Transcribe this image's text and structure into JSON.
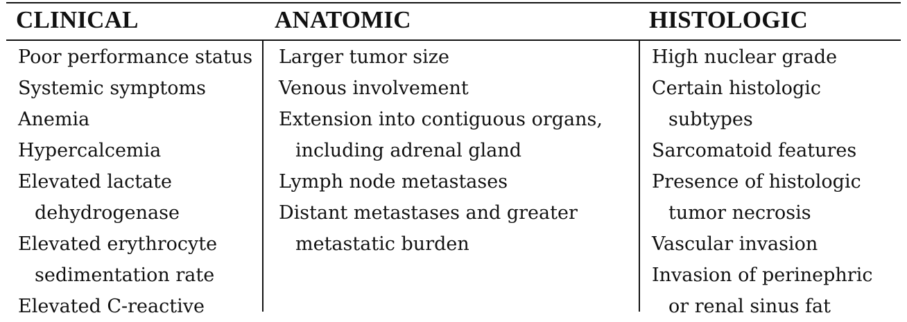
{
  "headers": {
    "clinical": "CLINICAL",
    "anatomic": "ANATOMIC",
    "histologic": "HISTOLOGIC"
  },
  "clinical": [
    {
      "text": "Poor performance status",
      "indent": false
    },
    {
      "text": "Systemic symptoms",
      "indent": false
    },
    {
      "text": "Anemia",
      "indent": false
    },
    {
      "text": "Hypercalcemia",
      "indent": false
    },
    {
      "text": "Elevated lactate",
      "indent": false
    },
    {
      "text": "dehydrogenase",
      "indent": true
    },
    {
      "text": "Elevated erythrocyte",
      "indent": false
    },
    {
      "text": "sedimentation rate",
      "indent": true
    },
    {
      "text": "Elevated C-reactive",
      "indent": false
    }
  ],
  "anatomic": [
    {
      "text": "Larger tumor size",
      "indent": false
    },
    {
      "text": "Venous involvement",
      "indent": false
    },
    {
      "text": "Extension into contiguous organs,",
      "indent": false
    },
    {
      "text": "including adrenal gland",
      "indent": true
    },
    {
      "text": "Lymph node metastases",
      "indent": false
    },
    {
      "text": "Distant metastases and greater",
      "indent": false
    },
    {
      "text": "metastatic burden",
      "indent": true
    }
  ],
  "histologic": [
    {
      "text": "High nuclear grade",
      "indent": false
    },
    {
      "text": "Certain histologic",
      "indent": false
    },
    {
      "text": "subtypes",
      "indent": true
    },
    {
      "text": "Sarcomatoid features",
      "indent": false
    },
    {
      "text": "Presence of histologic",
      "indent": false
    },
    {
      "text": "tumor necrosis",
      "indent": true
    },
    {
      "text": "Vascular invasion",
      "indent": false
    },
    {
      "text": "Invasion of perinephric",
      "indent": false
    },
    {
      "text": "or renal sinus fat",
      "indent": true
    }
  ]
}
